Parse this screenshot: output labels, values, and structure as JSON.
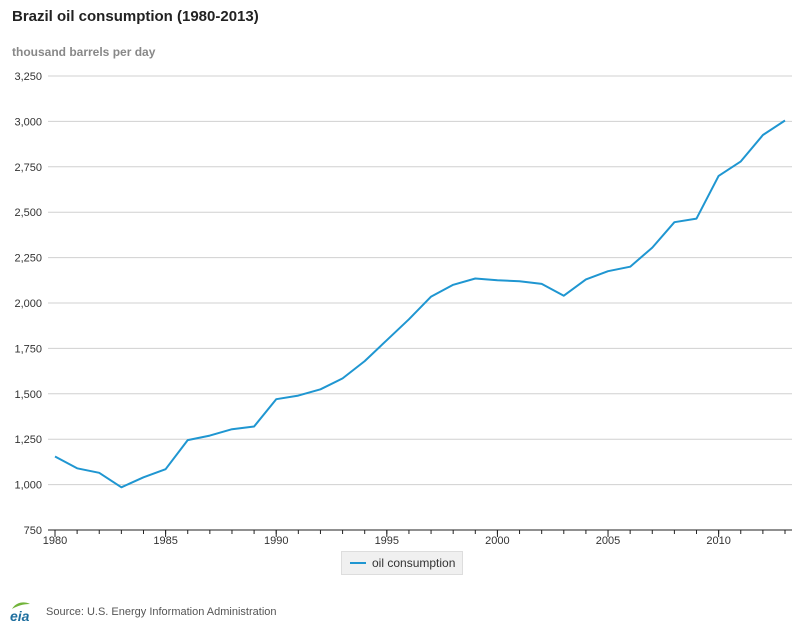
{
  "header": {
    "title": "Brazil oil consumption (1980-2013)",
    "unit": "thousand barrels per day"
  },
  "legend": {
    "label": "oil consumption"
  },
  "footer": {
    "logo_text": "eia",
    "source": "Source: U.S. Energy Information Administration"
  },
  "colors": {
    "series": "#1f96d1",
    "grid": "#d0d0d0",
    "axis": "#222222",
    "logo": "#1f6f9f",
    "logo_accent": "#72b43a"
  },
  "chart_data": {
    "type": "line",
    "title": "Brazil oil consumption (1980-2013)",
    "ylabel": "thousand barrels per day",
    "xlabel": "",
    "xlim": [
      1980,
      2013
    ],
    "ylim": [
      750,
      3250
    ],
    "x_ticks": [
      1980,
      1985,
      1990,
      1995,
      2000,
      2005,
      2010
    ],
    "y_ticks": [
      750,
      1000,
      1250,
      1500,
      1750,
      2000,
      2250,
      2500,
      2750,
      3000,
      3250
    ],
    "y_tick_labels": [
      "750",
      "1,000",
      "1,250",
      "1,500",
      "1,750",
      "2,000",
      "2,250",
      "2,500",
      "2,750",
      "3,000",
      "3,250"
    ],
    "grid": true,
    "legend_position": "bottom-center",
    "series": [
      {
        "name": "oil consumption",
        "x": [
          1980,
          1981,
          1982,
          1983,
          1984,
          1985,
          1986,
          1987,
          1988,
          1989,
          1990,
          1991,
          1992,
          1993,
          1994,
          1995,
          1996,
          1997,
          1998,
          1999,
          2000,
          2001,
          2002,
          2003,
          2004,
          2005,
          2006,
          2007,
          2008,
          2009,
          2010,
          2011,
          2012,
          2013
        ],
        "values": [
          1155,
          1090,
          1065,
          985,
          1040,
          1085,
          1245,
          1270,
          1305,
          1320,
          1470,
          1490,
          1525,
          1585,
          1680,
          1795,
          1910,
          2035,
          2100,
          2135,
          2125,
          2120,
          2105,
          2040,
          2130,
          2175,
          2200,
          2305,
          2445,
          2465,
          2700,
          2780,
          2925,
          3005
        ]
      }
    ]
  }
}
